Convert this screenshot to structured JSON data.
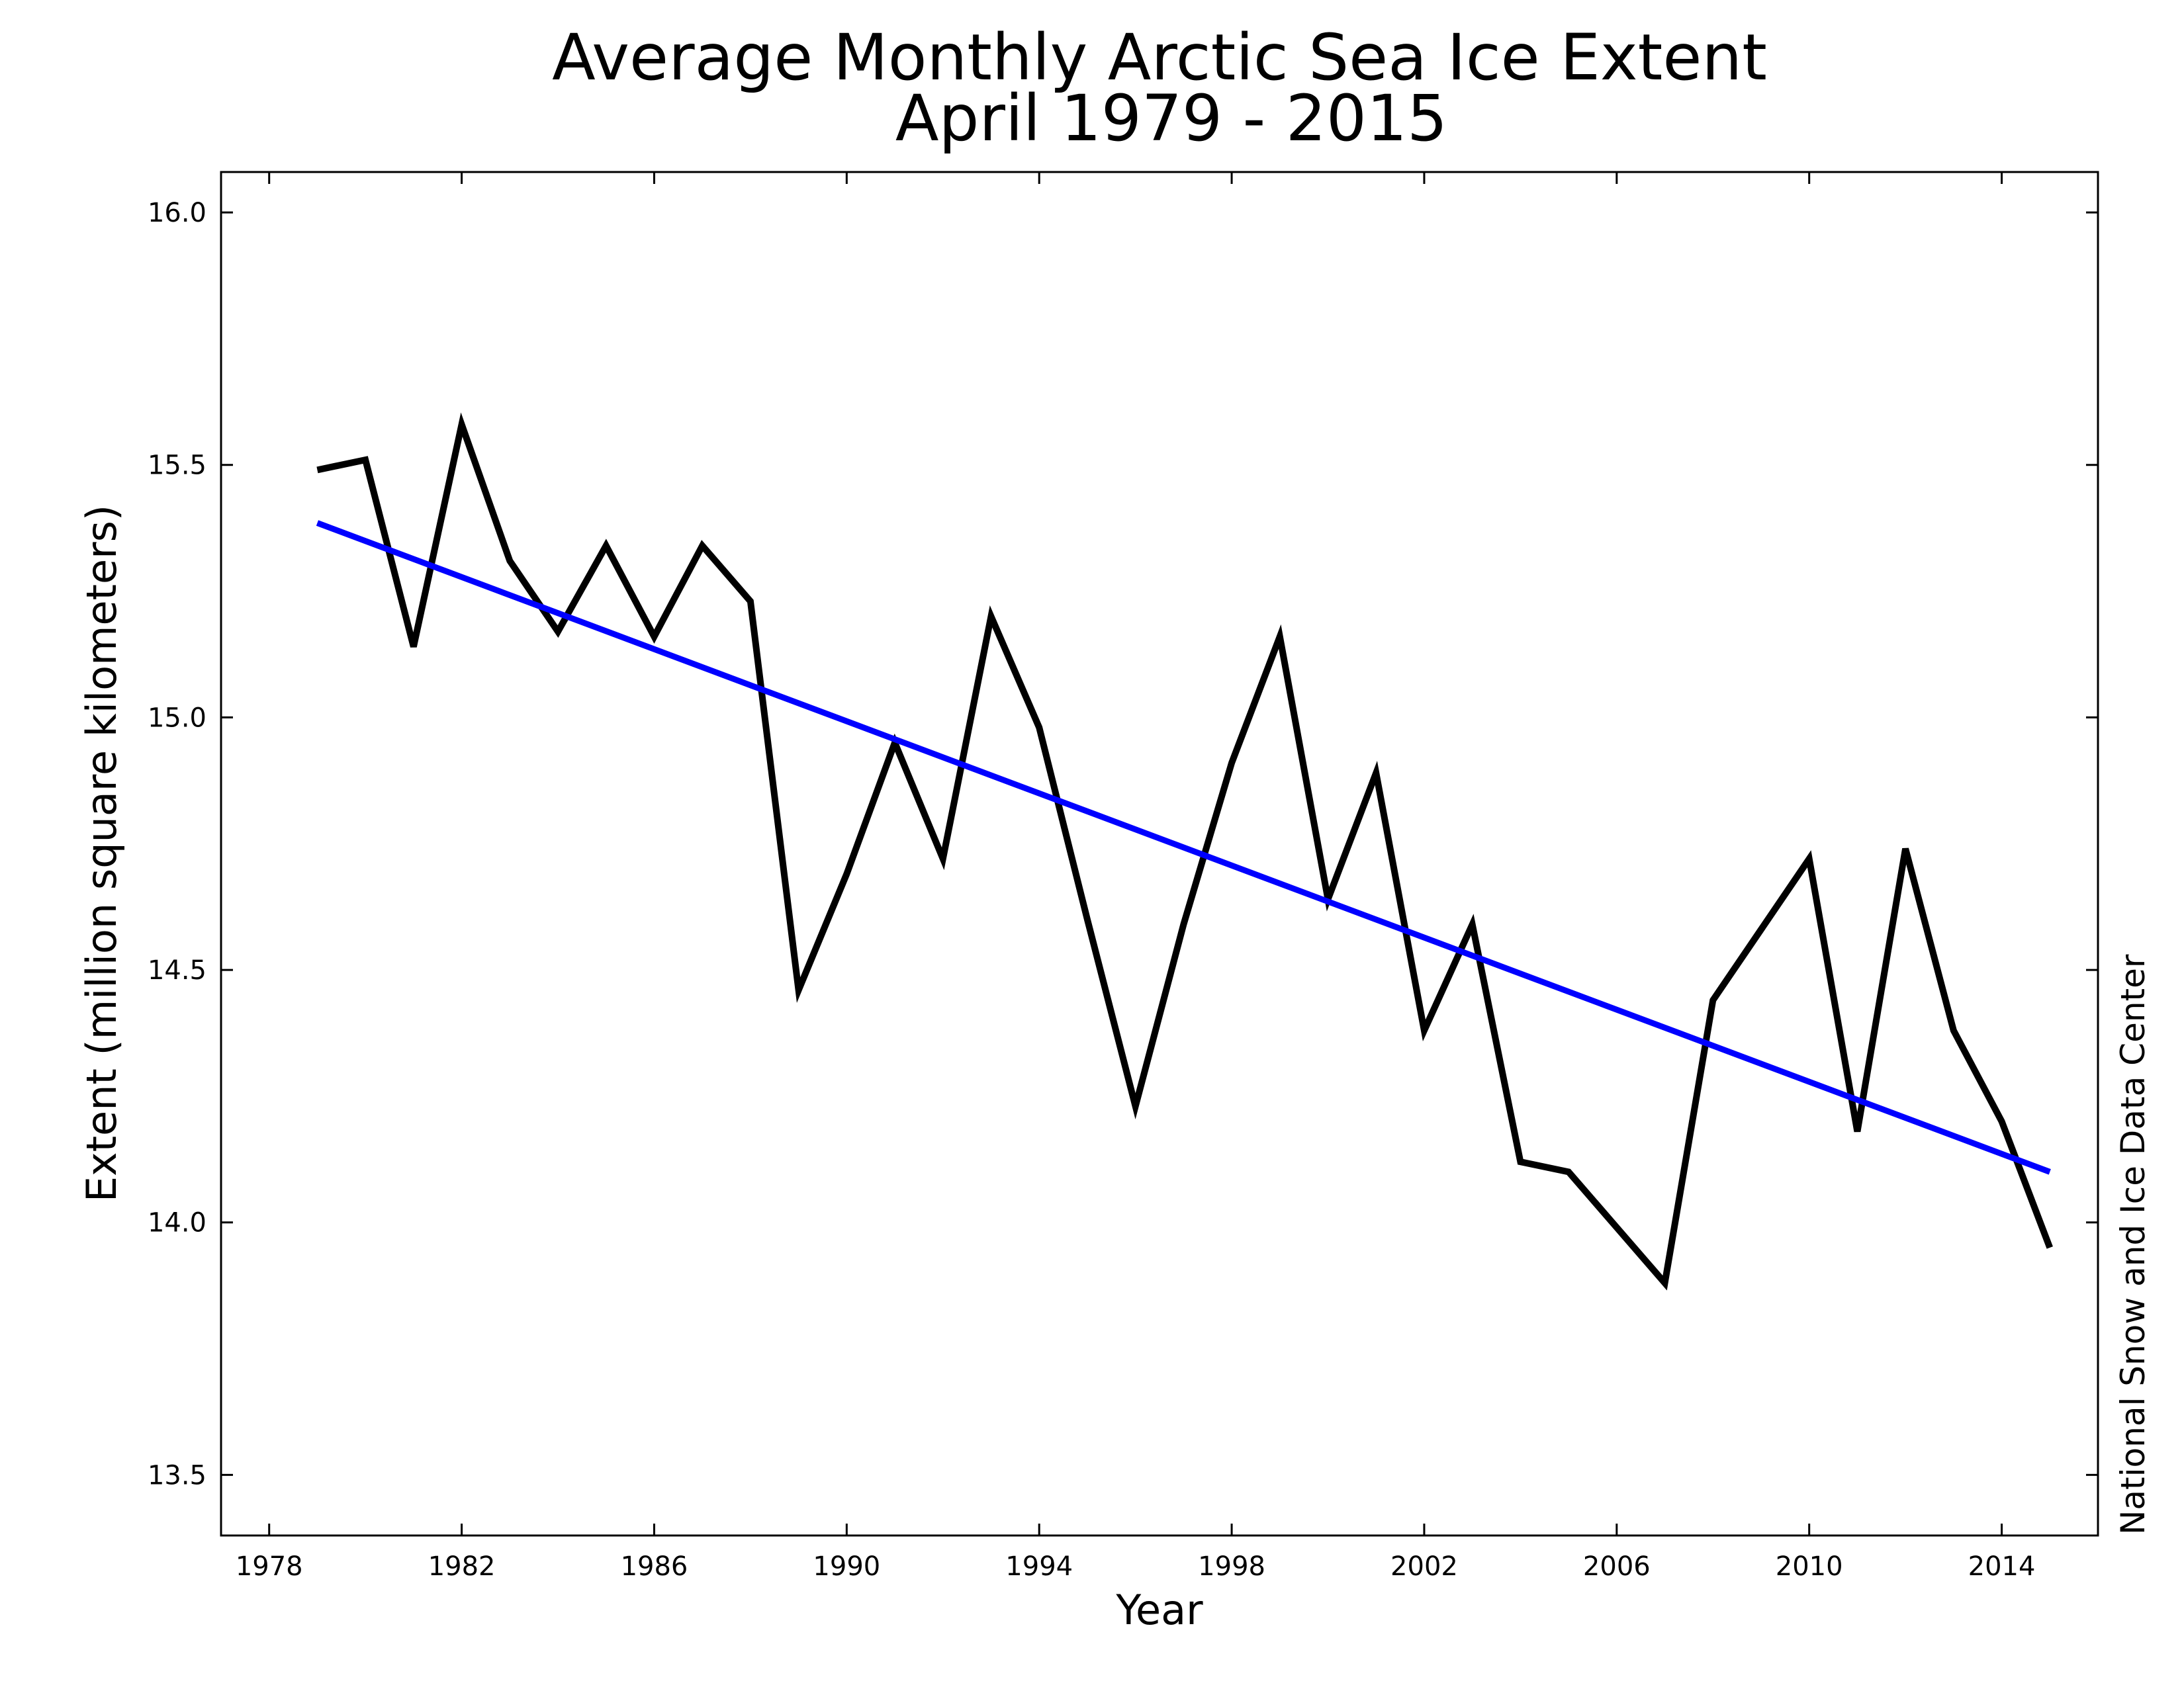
{
  "chart_data": {
    "type": "line",
    "title": "Average Monthly Arctic Sea Ice Extent",
    "subtitle": "April 1979 - 2015",
    "xlabel": "Year",
    "ylabel": "Extent (million square kilometers)",
    "credit": "National Snow and Ice Data Center",
    "xlim": [
      1977,
      2016
    ],
    "ylim": [
      13.38,
      16.08
    ],
    "xticks": [
      1978,
      1982,
      1986,
      1990,
      1994,
      1998,
      2002,
      2006,
      2010,
      2014
    ],
    "yticks": [
      "13.5",
      "14.0",
      "14.5",
      "15.0",
      "15.5",
      "16.0"
    ],
    "grid": false,
    "x": [
      1979,
      1980,
      1981,
      1982,
      1983,
      1984,
      1985,
      1986,
      1987,
      1988,
      1989,
      1990,
      1991,
      1992,
      1993,
      1994,
      1995,
      1996,
      1997,
      1998,
      1999,
      2000,
      2001,
      2002,
      2003,
      2004,
      2005,
      2006,
      2007,
      2008,
      2009,
      2010,
      2011,
      2012,
      2013,
      2014,
      2015
    ],
    "series": [
      {
        "color": "#000000",
        "values": [
          15.49,
          15.51,
          15.14,
          15.58,
          15.31,
          15.17,
          15.34,
          15.16,
          15.34,
          15.23,
          14.46,
          14.69,
          14.95,
          14.72,
          15.2,
          14.98,
          14.6,
          14.23,
          14.59,
          14.91,
          15.16,
          14.64,
          14.89,
          14.38,
          14.59,
          14.12,
          14.1,
          13.99,
          13.88,
          14.44,
          14.58,
          14.72,
          14.18,
          14.74,
          14.38,
          14.2,
          13.95
        ]
      },
      {
        "kind": "linear-trend",
        "color": "#0000ff",
        "x": [
          1979,
          2015
        ],
        "values": [
          15.385,
          14.1
        ]
      }
    ]
  }
}
